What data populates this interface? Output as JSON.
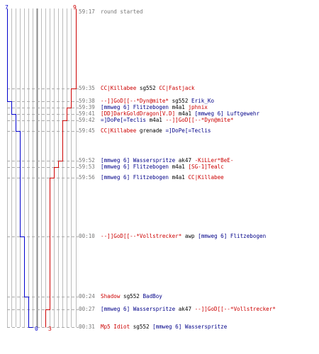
{
  "colors": {
    "team_blue": "#0000cc",
    "team_red": "#cc0000",
    "grid": "#bbbbbb",
    "dash": "#aaaaaa",
    "center": "#888888"
  },
  "score": {
    "blue_top": "7",
    "red_top": "9",
    "blue_bottom": "0",
    "red_bottom": "3"
  },
  "events": [
    {
      "time": "59:17",
      "parts": [
        {
          "t": "round started",
          "c": "gray"
        }
      ]
    },
    {
      "time": "59:35",
      "parts": [
        {
          "t": "CC|Killabee",
          "c": "red"
        },
        {
          "t": " sg552 ",
          "c": "blk"
        },
        {
          "t": "CC|Fastjack",
          "c": "red"
        }
      ]
    },
    {
      "time": "59:38",
      "parts": [
        {
          "t": "--]]GoD[[--*Dyn@mite*",
          "c": "red"
        },
        {
          "t": " sg552 ",
          "c": "blk"
        },
        {
          "t": "Erik_Ko",
          "c": "blue"
        }
      ]
    },
    {
      "time": "59:39",
      "parts": [
        {
          "t": "[mmweg 6] Flitzebogen",
          "c": "blue"
        },
        {
          "t": " m4a1 ",
          "c": "blk"
        },
        {
          "t": "jphnix",
          "c": "red"
        }
      ]
    },
    {
      "time": "59:41",
      "parts": [
        {
          "t": "[DD]DarkGoldDragon[V.D]",
          "c": "red"
        },
        {
          "t": " m4a1 ",
          "c": "blk"
        },
        {
          "t": "[mmweg 6] Luftgewehr",
          "c": "blue"
        }
      ]
    },
    {
      "time": "59:42",
      "parts": [
        {
          "t": "=]DoPe[=Teclis",
          "c": "blue"
        },
        {
          "t": " m4a1 ",
          "c": "blk"
        },
        {
          "t": "--]]GoD[[--*Dyn@mite*",
          "c": "red"
        }
      ]
    },
    {
      "time": "59:45",
      "parts": [
        {
          "t": "CC|Killabee",
          "c": "red"
        },
        {
          "t": " grenade ",
          "c": "blk"
        },
        {
          "t": "=]DoPe[=Teclis",
          "c": "blue"
        }
      ]
    },
    {
      "time": "59:52",
      "parts": [
        {
          "t": "[mmweg 6] Wasserspritze",
          "c": "blue"
        },
        {
          "t": " ak47 ",
          "c": "blk"
        },
        {
          "t": "-KiLLer*BeE-",
          "c": "red"
        }
      ]
    },
    {
      "time": "59:53",
      "parts": [
        {
          "t": "[mmweg 6] Flitzebogen",
          "c": "blue"
        },
        {
          "t": " m4a1 ",
          "c": "blk"
        },
        {
          "t": "[SG-1]Tealc",
          "c": "red"
        }
      ]
    },
    {
      "time": "59:56",
      "parts": [
        {
          "t": "[mmweg 6] Flitzebogen",
          "c": "blue"
        },
        {
          "t": " m4a1 ",
          "c": "blk"
        },
        {
          "t": "CC|Killabee",
          "c": "red"
        }
      ]
    },
    {
      "time": "00:10",
      "parts": [
        {
          "t": "--]]GoD[[--*Vollstrecker*",
          "c": "red"
        },
        {
          "t": " awp ",
          "c": "blk"
        },
        {
          "t": "[mmweg 6] Flitzebogen",
          "c": "blue"
        }
      ]
    },
    {
      "time": "00:24",
      "parts": [
        {
          "t": "Shadow",
          "c": "red"
        },
        {
          "t": " sg552 ",
          "c": "blk"
        },
        {
          "t": "BadBoy",
          "c": "blue"
        }
      ]
    },
    {
      "time": "00:27",
      "parts": [
        {
          "t": "[mmweg 6] Wasserspritze",
          "c": "blue"
        },
        {
          "t": " ak47 ",
          "c": "blk"
        },
        {
          "t": "--]]GoD[[--*Vollstrecker*",
          "c": "red"
        }
      ]
    },
    {
      "time": "00:31",
      "parts": [
        {
          "t": "Mp5 Idiot",
          "c": "red"
        },
        {
          "t": " sg552 ",
          "c": "blk"
        },
        {
          "t": "[mmweg 6] Wasserspritze",
          "c": "blue"
        }
      ]
    }
  ]
}
